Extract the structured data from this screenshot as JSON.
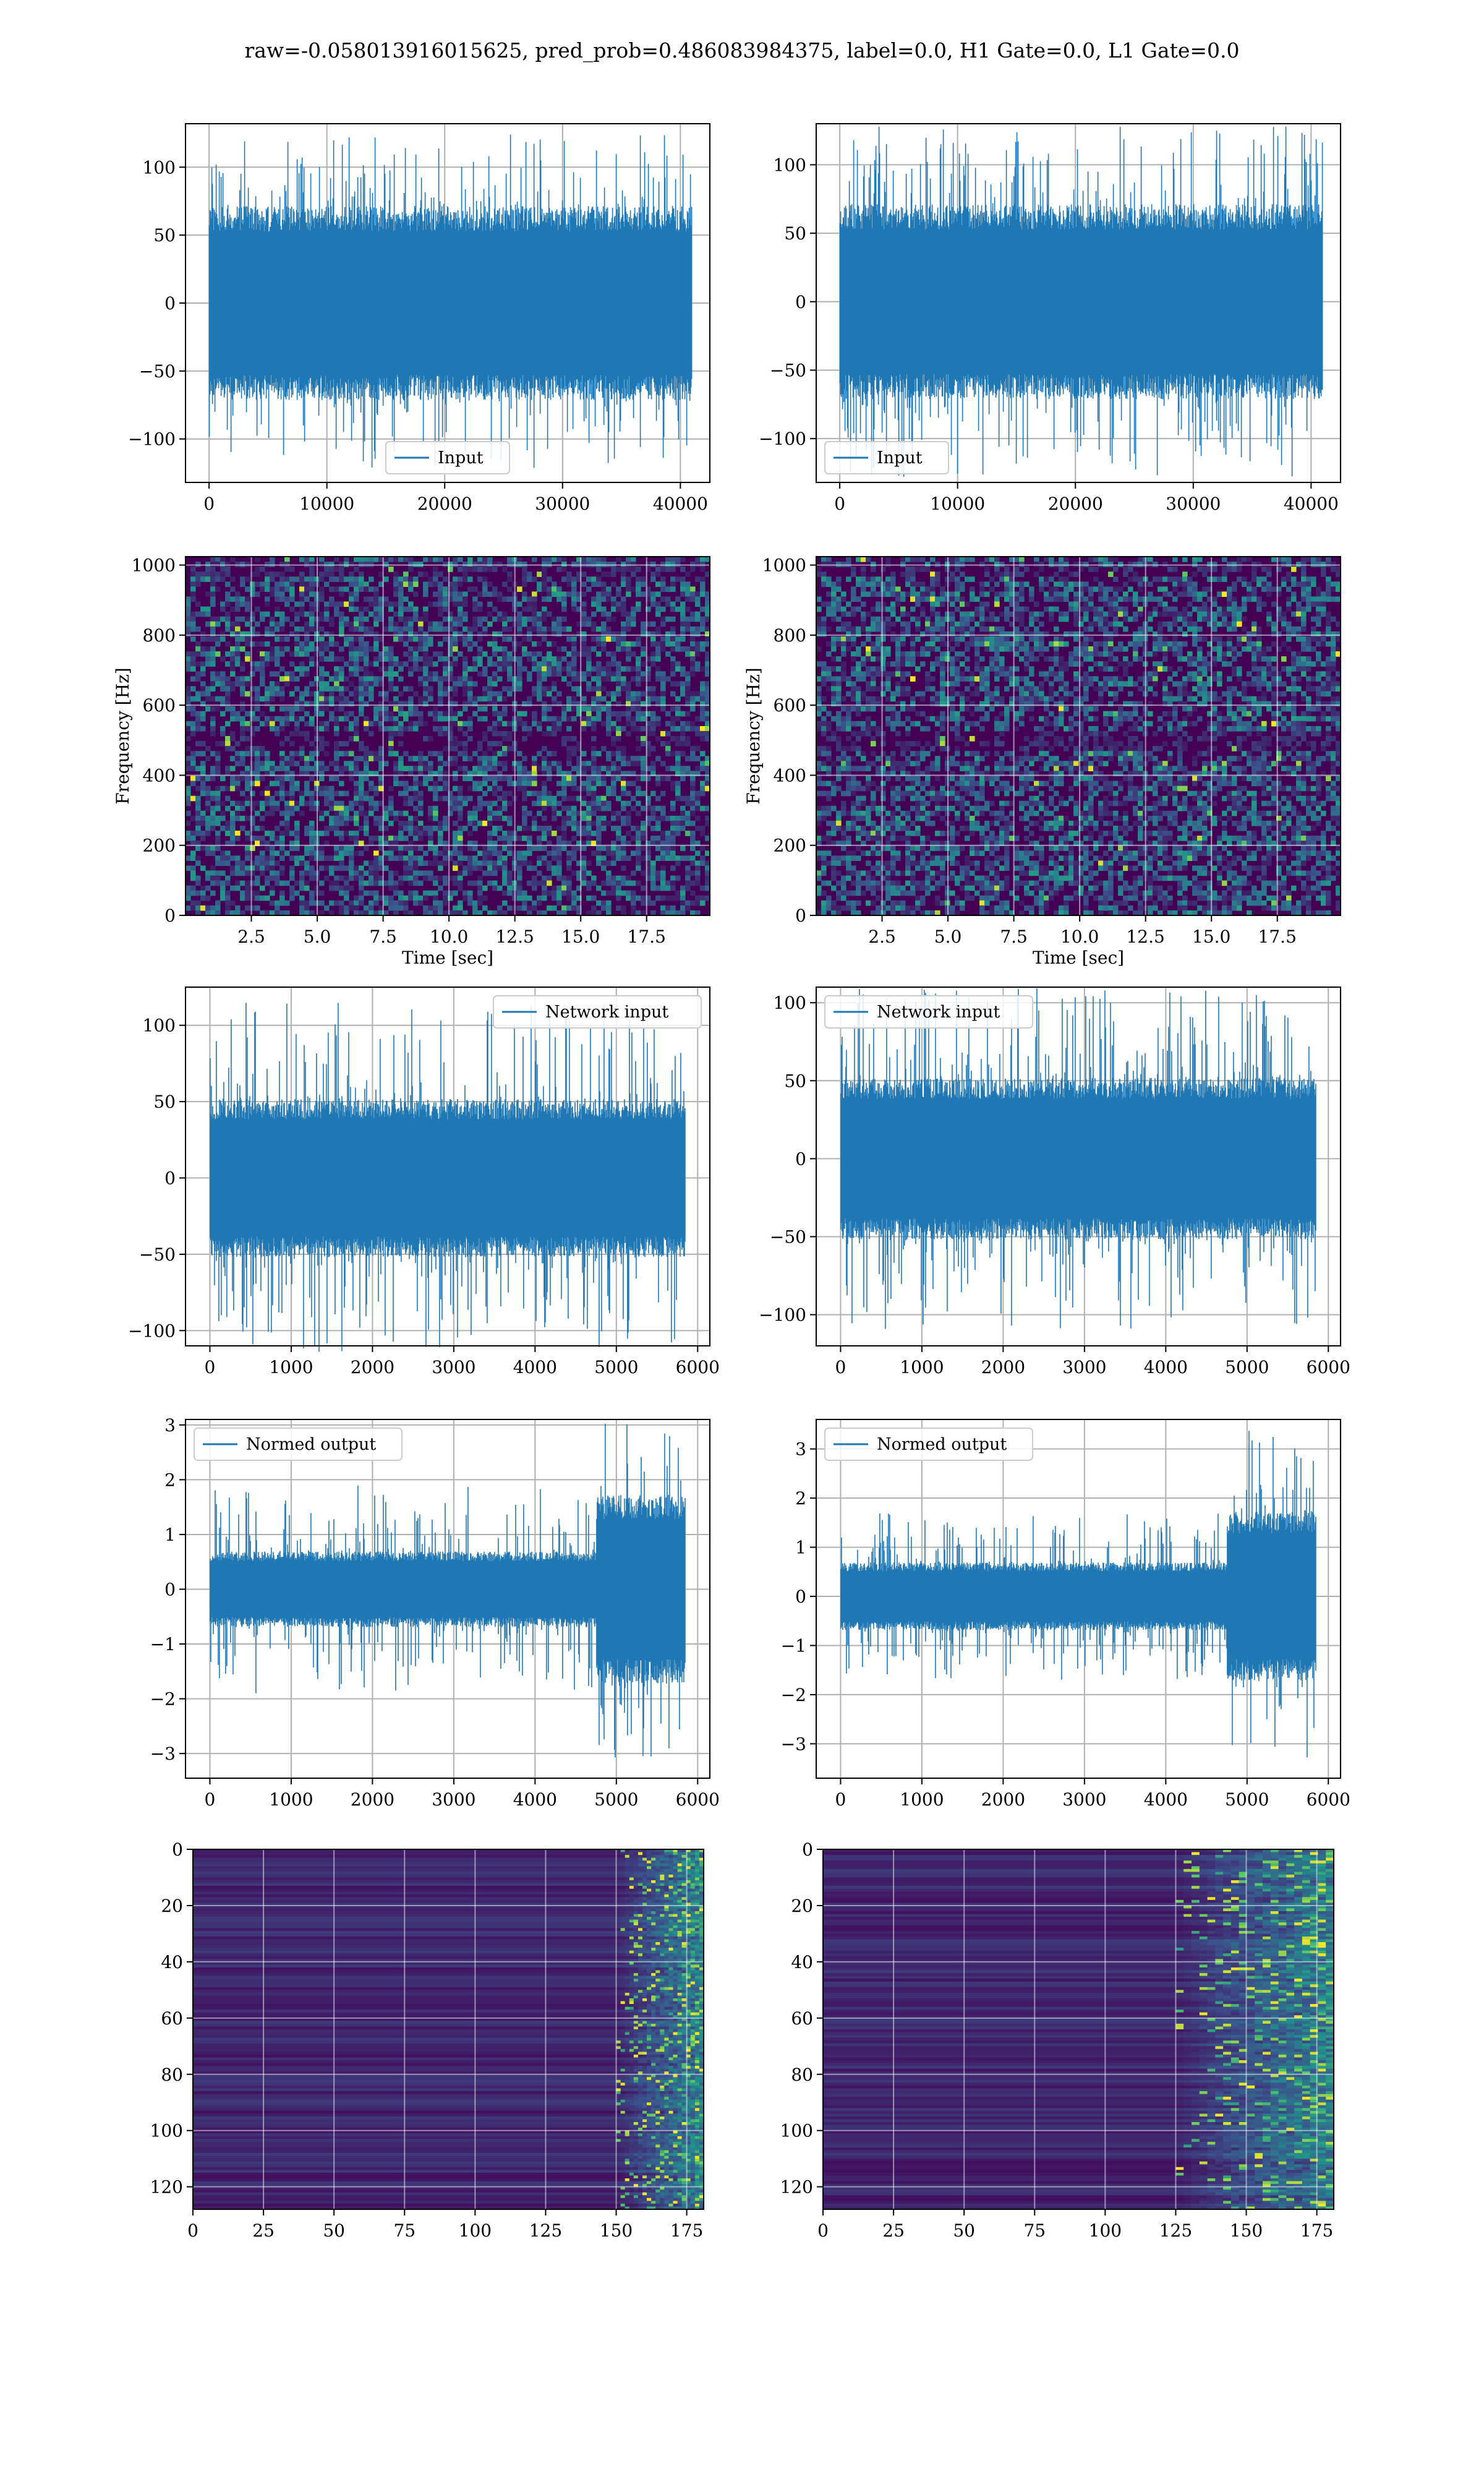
{
  "figure": {
    "suptitle": "raw=-0.058013916015625, pred_prob=0.486083984375, label=0.0, H1 Gate=0.0, L1 Gate=0.0"
  },
  "colors": {
    "series": "#1f77b4",
    "grid": "#b0b0b0",
    "viridis_low": "#440154",
    "viridis_mid": "#31688e",
    "viridis_green": "#35b779",
    "viridis_high": "#fde725"
  },
  "chart_data": [
    {
      "id": "input-h1",
      "type": "line",
      "legend": "Input",
      "legend_loc": "lower center",
      "xlim": [
        -2000,
        42500
      ],
      "ylim": [
        -132,
        132
      ],
      "xticks": [
        0,
        10000,
        20000,
        30000,
        40000
      ],
      "yticks": [
        -100,
        -50,
        0,
        50,
        100
      ],
      "n_samples": 40960,
      "band_amp": 62,
      "peak_amp": 124,
      "grid": true
    },
    {
      "id": "input-l1",
      "type": "line",
      "legend": "Input",
      "legend_loc": "lower left",
      "xlim": [
        -2000,
        42500
      ],
      "ylim": [
        -132,
        130
      ],
      "xticks": [
        0,
        10000,
        20000,
        30000,
        40000
      ],
      "yticks": [
        -100,
        -50,
        0,
        50,
        100
      ],
      "n_samples": 40960,
      "band_amp": 62,
      "peak_amp": 128,
      "grid": true
    },
    {
      "id": "spec-h1",
      "type": "heatmap",
      "xlabel": "Time [sec]",
      "ylabel": "Frequency [Hz]",
      "xlim": [
        0,
        19.9
      ],
      "ylim": [
        0,
        1024
      ],
      "xticks": [
        2.5,
        5.0,
        7.5,
        10.0,
        12.5,
        15.0,
        17.5
      ],
      "xtick_labels": [
        "2.5",
        "5.0",
        "7.5",
        "10.0",
        "12.5",
        "15.0",
        "17.5"
      ],
      "yticks": [
        0,
        200,
        400,
        600,
        800,
        1000
      ],
      "grid": true,
      "colormap": "viridis",
      "description_texture": "noise"
    },
    {
      "id": "spec-l1",
      "type": "heatmap",
      "xlabel": "Time [sec]",
      "ylabel": "Frequency [Hz]",
      "xlim": [
        0,
        19.9
      ],
      "ylim": [
        0,
        1024
      ],
      "xticks": [
        2.5,
        5.0,
        7.5,
        10.0,
        12.5,
        15.0,
        17.5
      ],
      "xtick_labels": [
        "2.5",
        "5.0",
        "7.5",
        "10.0",
        "12.5",
        "15.0",
        "17.5"
      ],
      "yticks": [
        0,
        200,
        400,
        600,
        800,
        1000
      ],
      "grid": true,
      "colormap": "viridis",
      "description_texture": "noise"
    },
    {
      "id": "netin-h1",
      "type": "line",
      "legend": "Network input",
      "legend_loc": "upper right",
      "xlim": [
        -300,
        6150
      ],
      "ylim": [
        -110,
        125
      ],
      "xticks": [
        0,
        1000,
        2000,
        3000,
        4000,
        5000,
        6000
      ],
      "yticks": [
        -100,
        -50,
        0,
        50,
        100
      ],
      "n_samples": 5850,
      "band_amp": 45,
      "peak_amp": 115,
      "grid": true
    },
    {
      "id": "netin-l1",
      "type": "line",
      "legend": "Network input",
      "legend_loc": "upper left",
      "xlim": [
        -300,
        6150
      ],
      "ylim": [
        -120,
        110
      ],
      "xticks": [
        0,
        1000,
        2000,
        3000,
        4000,
        5000,
        6000
      ],
      "yticks": [
        -100,
        -50,
        0,
        50,
        100
      ],
      "n_samples": 5850,
      "band_amp": 45,
      "peak_amp": 110,
      "grid": true
    },
    {
      "id": "normed-h1",
      "type": "line",
      "legend": "Normed output",
      "legend_loc": "upper left",
      "xlim": [
        -300,
        6150
      ],
      "ylim": [
        -3.45,
        3.1
      ],
      "xticks": [
        0,
        1000,
        2000,
        3000,
        4000,
        5000,
        6000
      ],
      "yticks": [
        -3,
        -2,
        -1,
        0,
        1,
        2,
        3
      ],
      "n_samples": 5850,
      "band_amp": 0.6,
      "peak_amp": 1.9,
      "burst_start": 4750,
      "burst_amp": 1.5,
      "burst_peak": 3.1,
      "grid": true
    },
    {
      "id": "normed-l1",
      "type": "line",
      "legend": "Normed output",
      "legend_loc": "upper left",
      "xlim": [
        -300,
        6150
      ],
      "ylim": [
        -3.7,
        3.6
      ],
      "xticks": [
        0,
        1000,
        2000,
        3000,
        4000,
        5000,
        6000
      ],
      "yticks": [
        -3,
        -2,
        -1,
        0,
        1,
        2,
        3
      ],
      "n_samples": 5850,
      "band_amp": 0.6,
      "peak_amp": 1.7,
      "burst_start": 4750,
      "burst_amp": 1.5,
      "burst_peak": 3.4,
      "grid": true
    },
    {
      "id": "feat-h1",
      "type": "heatmap",
      "xlim": [
        0,
        181
      ],
      "ylim": [
        128,
        0
      ],
      "xticks": [
        0,
        25,
        50,
        75,
        100,
        125,
        150,
        175
      ],
      "yticks": [
        0,
        20,
        40,
        60,
        80,
        100,
        120
      ],
      "grid": true,
      "colormap": "viridis",
      "activity_start": 150
    },
    {
      "id": "feat-l1",
      "type": "heatmap",
      "xlim": [
        0,
        181
      ],
      "ylim": [
        128,
        0
      ],
      "xticks": [
        0,
        25,
        50,
        75,
        100,
        125,
        150,
        175
      ],
      "yticks": [
        0,
        20,
        40,
        60,
        80,
        100,
        120
      ],
      "grid": true,
      "colormap": "viridis",
      "activity_start": 125
    }
  ]
}
